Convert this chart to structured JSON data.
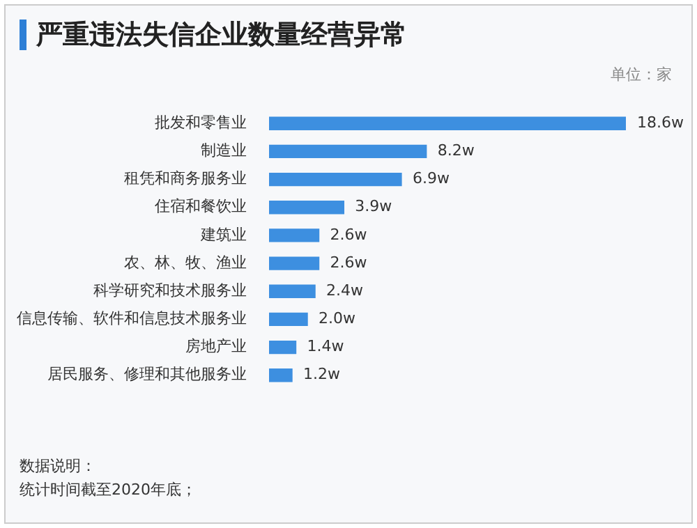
{
  "chart_data": {
    "type": "bar",
    "orientation": "horizontal",
    "title": "严重违法失信企业数量经营异常",
    "subtitle": "单位：家",
    "categories": [
      "批发和零售业",
      "制造业",
      "租凭和商务服务业",
      "住宿和餐饮业",
      "建筑业",
      "农、林、牧、渔业",
      "科学研究和技术服务业",
      "信息传输、软件和信息技术服务业",
      "房地产业",
      "居民服务、修理和其他服务业"
    ],
    "values": [
      18.6,
      8.2,
      6.9,
      3.9,
      2.6,
      2.6,
      2.4,
      2.0,
      1.4,
      1.2
    ],
    "value_labels": [
      "18.6w",
      "8.2w",
      "6.9w",
      "3.9w",
      "2.6w",
      "2.6w",
      "2.4w",
      "2.0w",
      "1.4w",
      "1.2w"
    ],
    "color": "#3d8fe0",
    "annotations": [
      "数据说明：",
      "统计时间截至2020年底；"
    ]
  }
}
